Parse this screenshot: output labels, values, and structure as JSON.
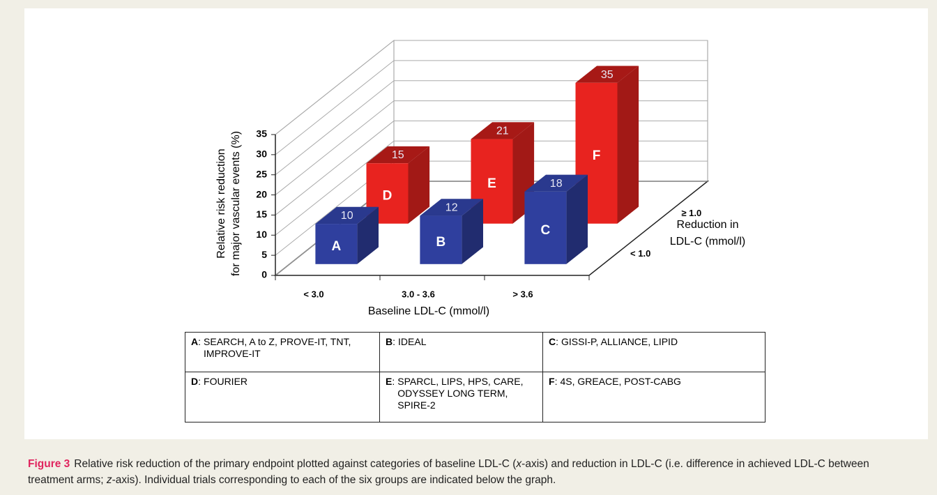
{
  "chart_data": {
    "type": "bar3d",
    "ylabel": [
      "Relative risk reduction",
      "for major vascular events (%)"
    ],
    "xlabel": "Baseline LDL-C (mmol/l)",
    "zlabel": [
      "Reduction in",
      "LDL-C (mmol/l)"
    ],
    "categories": [
      "< 3.0",
      "3.0 - 3.6",
      "> 3.6"
    ],
    "series": [
      {
        "name": "< 1.0",
        "color": "#2f3f9e",
        "values": [
          10,
          12,
          18
        ],
        "letters": [
          "A",
          "B",
          "C"
        ]
      },
      {
        "name": "≥ 1.0",
        "color": "#e8231f",
        "values": [
          15,
          21,
          35
        ],
        "letters": [
          "D",
          "E",
          "F"
        ]
      }
    ],
    "ylim": [
      0,
      35
    ],
    "yticks": [
      0,
      5,
      10,
      15,
      20,
      25,
      30,
      35
    ],
    "grid": true
  },
  "table": {
    "rows": [
      [
        "SEARCH, A to Z, PROVE-IT, TNT, IMPROVE-IT",
        "IDEAL",
        "GISSI-P, ALLIANCE, LIPID"
      ],
      [
        "FOURIER",
        "SPARCL, LIPS, HPS, CARE, ODYSSEY LONG TERM, SPIRE-2",
        "4S, GREACE, POST-CABG"
      ]
    ]
  },
  "caption": {
    "label": "Figure 3",
    "parts": [
      "Relative risk reduction of the primary endpoint plotted against categories of baseline LDL-C (",
      "x",
      "-axis) and reduction in LDL-C (i.e. difference in achieved LDL-C between treatment arms; ",
      "z",
      "-axis). Individual trials corresponding to each of the six groups are indicated below the graph."
    ]
  }
}
